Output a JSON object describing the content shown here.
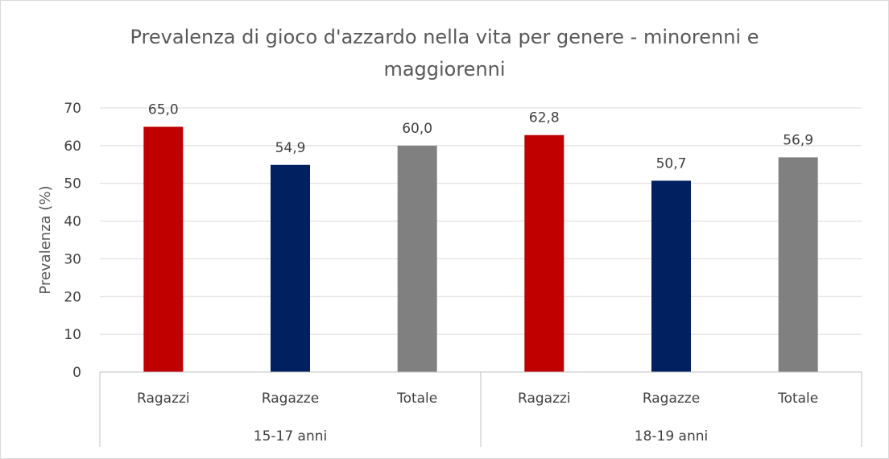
{
  "chart_data": {
    "type": "bar",
    "title_lines": [
      "Prevalenza di gioco d'azzardo nella vita per genere - minorenni e",
      "maggiorenni"
    ],
    "ylabel": "Prevalenza (%)",
    "xlabel": "",
    "ylim": [
      0,
      70
    ],
    "yticks": [
      0,
      10,
      20,
      30,
      40,
      50,
      60,
      70
    ],
    "grid": true,
    "legend": "none",
    "groups": [
      {
        "label": "15-17 anni",
        "bars": [
          {
            "category": "Ragazzi",
            "value": 65.0,
            "label": "65,0",
            "color": "#c00000"
          },
          {
            "category": "Ragazze",
            "value": 54.9,
            "label": "54,9",
            "color": "#002060"
          },
          {
            "category": "Totale",
            "value": 60.0,
            "label": "60,0",
            "color": "#808080"
          }
        ]
      },
      {
        "label": "18-19 anni",
        "bars": [
          {
            "category": "Ragazzi",
            "value": 62.8,
            "label": "62,8",
            "color": "#c00000"
          },
          {
            "category": "Ragazze",
            "value": 50.7,
            "label": "50,7",
            "color": "#002060"
          },
          {
            "category": "Totale",
            "value": 56.9,
            "label": "56,9",
            "color": "#808080"
          }
        ]
      }
    ]
  }
}
